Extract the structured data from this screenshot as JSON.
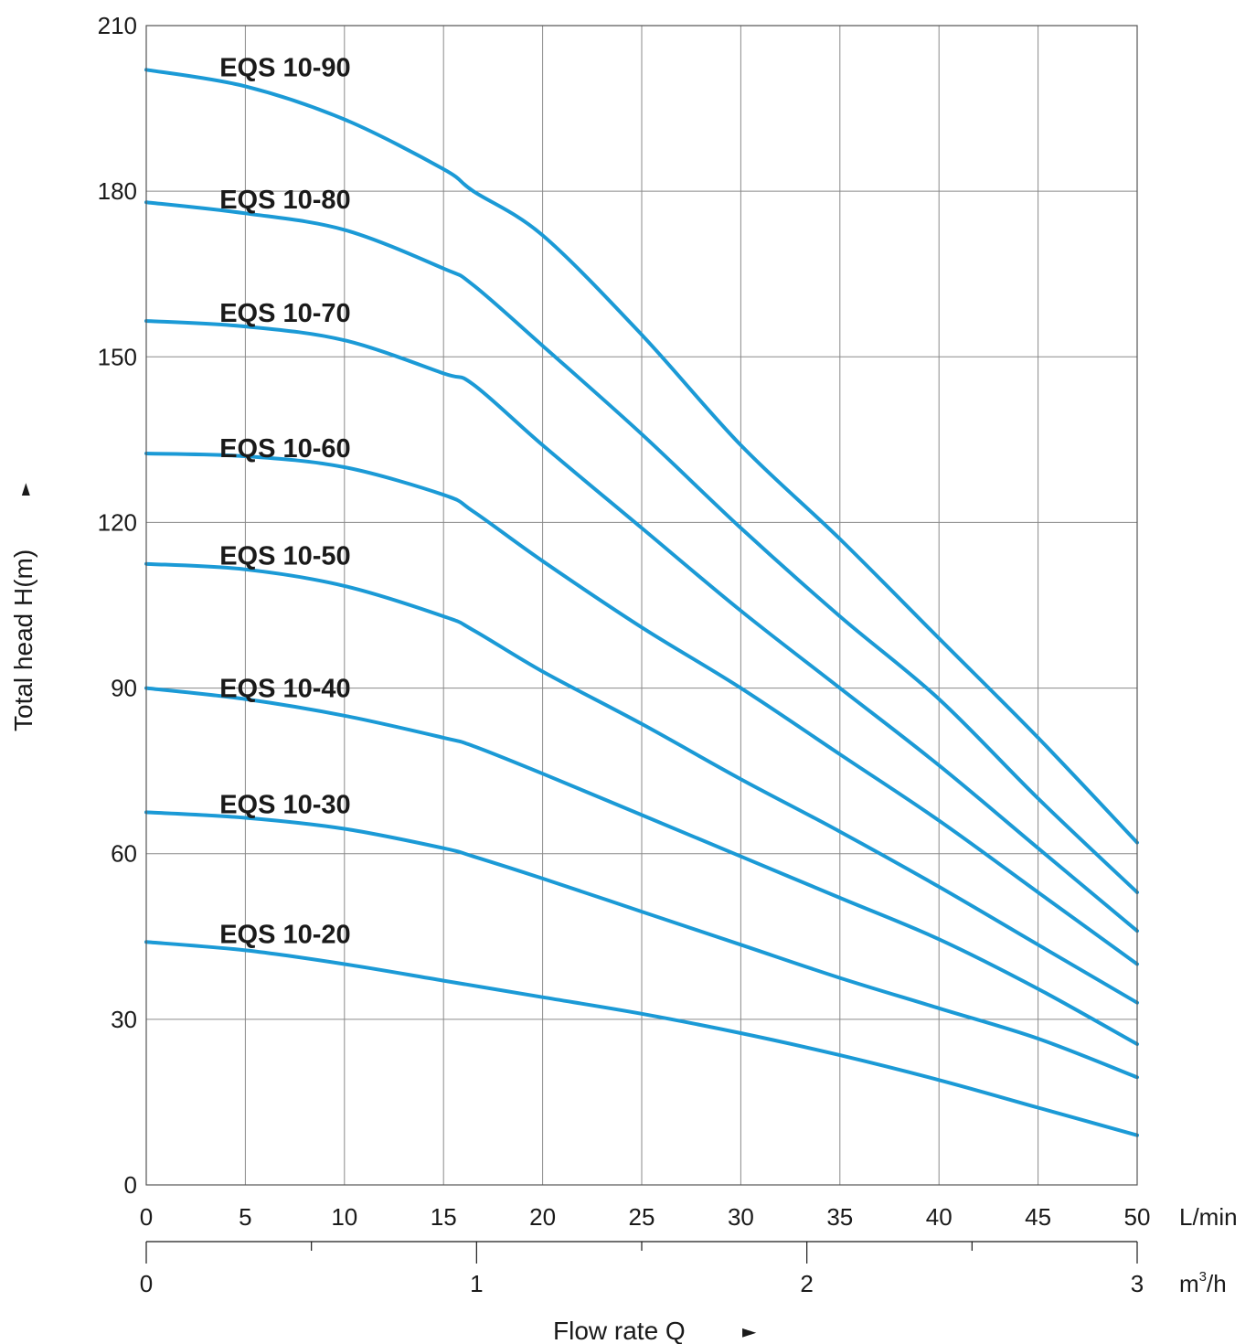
{
  "chart_data": {
    "type": "line",
    "title": "",
    "ylabel": "Total  head H(m)",
    "xlabel": "Flow rate  Q",
    "x_unit": "L/min",
    "x2_unit_base": "m",
    "x2_unit_sup": "3",
    "x2_unit_tail": "/h",
    "arrow_glyph": "►",
    "up_arrow_glyph": "►",
    "xlim": [
      0,
      50
    ],
    "ylim": [
      0,
      210
    ],
    "grid": true,
    "line_color": "#1b9ad6",
    "x_ticks": [
      "0",
      "5",
      "10",
      "15",
      "20",
      "25",
      "30",
      "35",
      "40",
      "45",
      "50"
    ],
    "y_ticks": [
      "0",
      "30",
      "60",
      "90",
      "120",
      "150",
      "180",
      "210"
    ],
    "x2_ticks": [
      "0",
      "1",
      "2",
      "3"
    ],
    "x2_minor_ticks_m3h": [
      0.5,
      1.5,
      2.5
    ],
    "series": [
      {
        "name": "EQS 10-90",
        "label_pos": [
          3.7,
          202.5
        ],
        "x": [
          0,
          5,
          10,
          15,
          16.5,
          20,
          25,
          30,
          35,
          40,
          45,
          50
        ],
        "y": [
          202,
          199,
          193,
          184,
          180,
          172,
          154,
          134,
          117,
          99,
          81,
          62
        ]
      },
      {
        "name": "EQS 10-80",
        "label_pos": [
          3.7,
          178.5
        ],
        "x": [
          0,
          5,
          10,
          15,
          16.5,
          20,
          25,
          30,
          35,
          40,
          45,
          50
        ],
        "y": [
          178,
          176,
          173,
          166,
          163,
          152,
          136,
          119,
          103,
          88,
          70,
          53
        ]
      },
      {
        "name": "EQS 10-70",
        "label_pos": [
          3.7,
          158
        ],
        "x": [
          0,
          5,
          10,
          15,
          16.5,
          20,
          25,
          30,
          35,
          40,
          45,
          50
        ],
        "y": [
          156.5,
          155.5,
          153,
          147,
          145,
          134,
          119,
          104,
          90,
          76,
          61,
          46
        ]
      },
      {
        "name": "EQS 10-60",
        "label_pos": [
          3.7,
          133.5
        ],
        "x": [
          0,
          5,
          10,
          15,
          16.5,
          20,
          25,
          30,
          35,
          40,
          45,
          50
        ],
        "y": [
          132.5,
          132,
          130,
          125,
          122,
          113,
          101,
          90,
          78,
          66,
          53,
          40
        ]
      },
      {
        "name": "EQS 10-50",
        "label_pos": [
          3.7,
          114
        ],
        "x": [
          0,
          5,
          10,
          15,
          16.5,
          20,
          25,
          30,
          35,
          40,
          45,
          50
        ],
        "y": [
          112.5,
          111.5,
          108.5,
          103,
          100.5,
          93,
          83.5,
          73.5,
          64,
          54,
          43.5,
          33
        ]
      },
      {
        "name": "EQS 10-40",
        "label_pos": [
          3.7,
          90
        ],
        "x": [
          0,
          5,
          10,
          15,
          16.5,
          20,
          25,
          30,
          35,
          40,
          45,
          50
        ],
        "y": [
          90,
          88,
          85,
          81,
          79.5,
          74.5,
          67,
          59.5,
          52,
          44.5,
          35.5,
          25.5
        ]
      },
      {
        "name": "EQS 10-30",
        "label_pos": [
          3.7,
          69
        ],
        "x": [
          0,
          5,
          10,
          15,
          16.5,
          20,
          25,
          30,
          35,
          40,
          45,
          50
        ],
        "y": [
          67.5,
          66.5,
          64.5,
          61,
          59.5,
          55.5,
          49.5,
          43.5,
          37.5,
          32,
          26.5,
          19.5
        ]
      },
      {
        "name": "EQS 10-20",
        "label_pos": [
          3.7,
          45.5
        ],
        "x": [
          0,
          5,
          10,
          15,
          20,
          25,
          30,
          35,
          40,
          45,
          50
        ],
        "y": [
          44,
          42.5,
          40,
          37,
          34,
          31,
          27.5,
          23.5,
          19,
          14,
          9
        ]
      }
    ]
  }
}
